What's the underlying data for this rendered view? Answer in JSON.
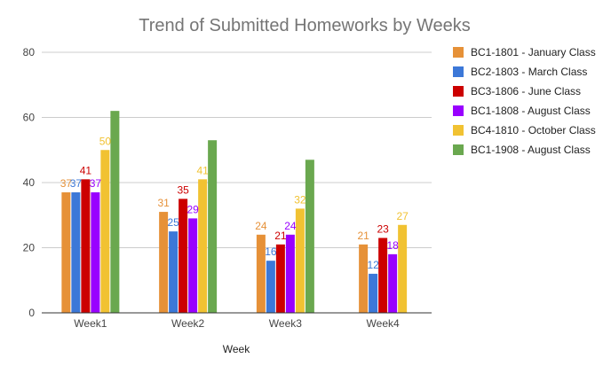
{
  "chart_data": {
    "type": "bar",
    "title": "Trend of Submitted Homeworks by Weeks",
    "xlabel": "Week",
    "ylabel": "",
    "ylim": [
      0,
      80
    ],
    "yticks": [
      0,
      20,
      40,
      60,
      80
    ],
    "grid": true,
    "legend_position": "right",
    "categories": [
      "Week1",
      "Week2",
      "Week3",
      "Week4"
    ],
    "series": [
      {
        "name": "BC1-1801 - January Class",
        "color": "#e69138",
        "values": [
          37,
          31,
          24,
          21
        ],
        "labels": [
          "37",
          "31",
          "24",
          "21"
        ]
      },
      {
        "name": "BC2-1803 - March Class",
        "color": "#3c78d8",
        "values": [
          37,
          25,
          16,
          12
        ],
        "labels": [
          "37",
          "25",
          "16",
          "12"
        ]
      },
      {
        "name": "BC3-1806 - June Class",
        "color": "#cc0000",
        "values": [
          41,
          35,
          21,
          23
        ],
        "labels": [
          "41",
          "35",
          "21",
          "23"
        ]
      },
      {
        "name": "BC1-1808 - August Class",
        "color": "#9900ff",
        "values": [
          37,
          29,
          24,
          18
        ],
        "labels": [
          "37",
          "29",
          "24",
          "18"
        ]
      },
      {
        "name": "BC4-1810 - October Class",
        "color": "#f1c232",
        "values": [
          50,
          41,
          32,
          27
        ],
        "labels": [
          "50",
          "41",
          "32",
          "27"
        ]
      },
      {
        "name": "BC1-1908 - August Class",
        "color": "#6aa84f",
        "values": [
          62,
          53,
          47,
          null
        ],
        "labels": [
          "",
          "",
          "",
          ""
        ]
      }
    ]
  }
}
